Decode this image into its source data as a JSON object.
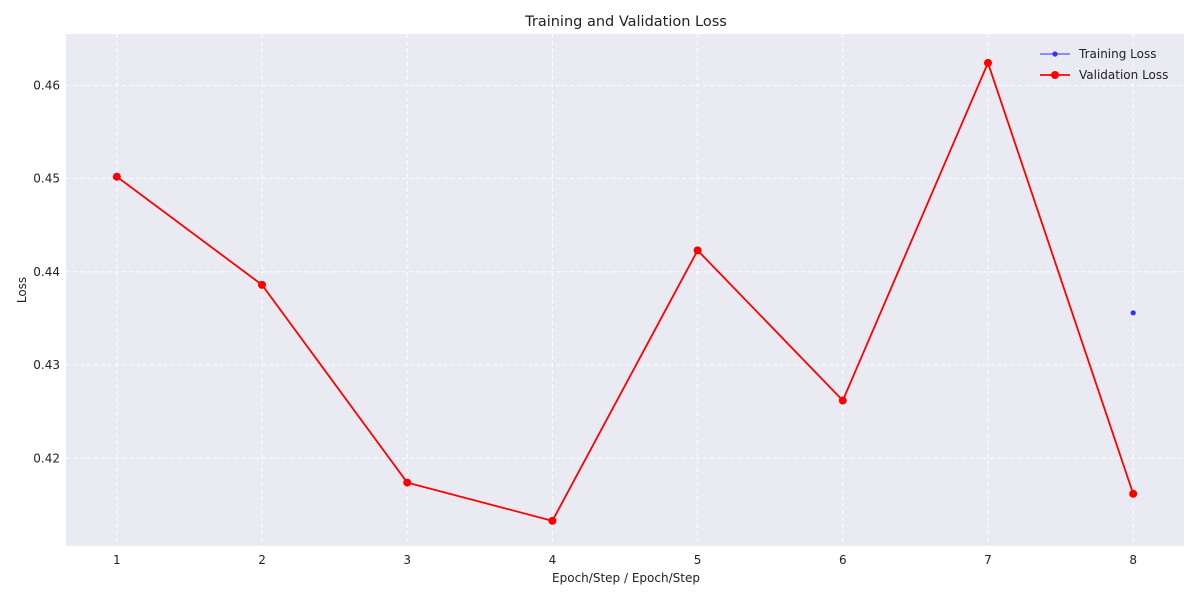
{
  "chart_data": {
    "type": "line",
    "title": "Training and Validation Loss",
    "xlabel": "Epoch/Step / Epoch/Step",
    "ylabel": "Loss",
    "xlim": [
      0.65,
      8.35
    ],
    "ylim": [
      0.4106,
      0.4655
    ],
    "x_ticks": [
      1,
      2,
      3,
      4,
      5,
      6,
      7,
      8
    ],
    "y_ticks": [
      0.42,
      0.43,
      0.44,
      0.45,
      0.46
    ],
    "y_tick_labels": [
      "0.42",
      "0.43",
      "0.44",
      "0.45",
      "0.46"
    ],
    "grid": true,
    "legend_position": "top-right",
    "background_color": "#eaeaf2",
    "series": [
      {
        "name": "Training Loss",
        "color": "#3333ff",
        "marker": "small-dot",
        "x": [
          8
        ],
        "values": [
          0.4356
        ]
      },
      {
        "name": "Validation Loss",
        "color": "#ff0000",
        "marker": "dot",
        "x": [
          1,
          2,
          3,
          4,
          5,
          6,
          7,
          8
        ],
        "values": [
          0.4502,
          0.4386,
          0.4174,
          0.4133,
          0.4423,
          0.4262,
          0.4624,
          0.4162
        ]
      }
    ]
  }
}
